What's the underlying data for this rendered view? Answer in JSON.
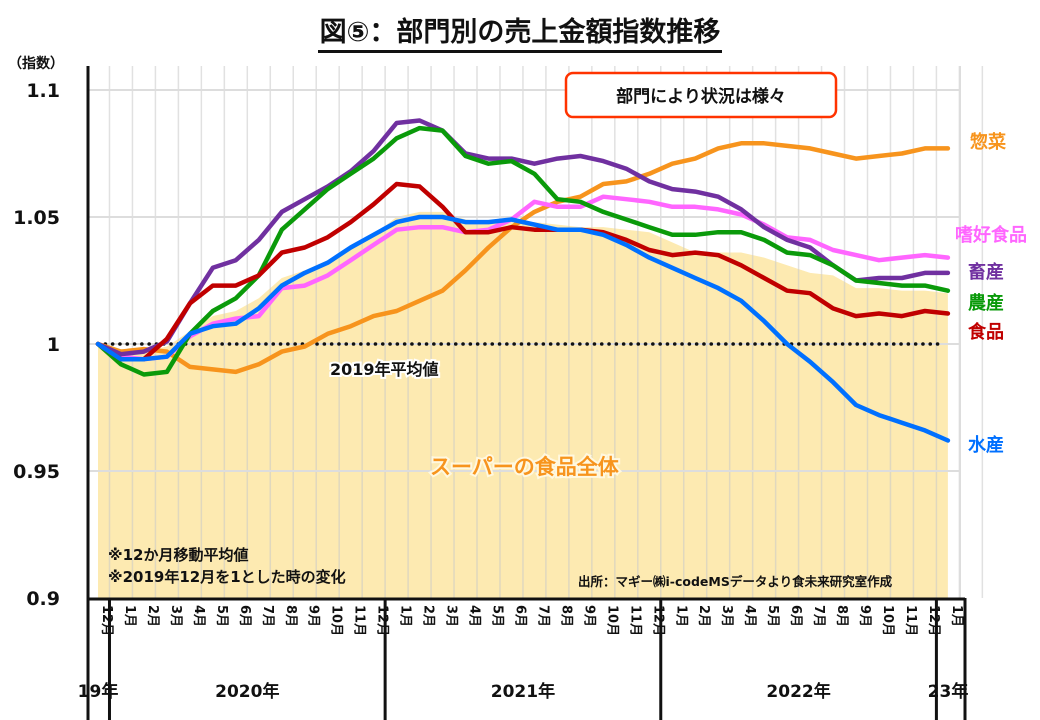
{
  "title": "図⑤：部門別の売上金額指数推移",
  "chart_data": {
    "type": "line",
    "title": "図⑤：部門別の売上金額指数推移",
    "ylabel": "（指数）",
    "xlabel": "",
    "ylim": [
      0.9,
      1.1
    ],
    "yticks": [
      {
        "value": 1.1,
        "label": "1.1"
      },
      {
        "value": 1.05,
        "label": "1.05"
      },
      {
        "value": 1.0,
        "label": "1"
      },
      {
        "value": 0.95,
        "label": "0.95"
      },
      {
        "value": 0.9,
        "label": "0.9"
      }
    ],
    "grid": true,
    "x_months": [
      "12月",
      "1月",
      "2月",
      "3月",
      "4月",
      "5月",
      "6月",
      "7月",
      "8月",
      "9月",
      "10月",
      "11月",
      "12月",
      "1月",
      "2月",
      "3月",
      "4月",
      "5月",
      "6月",
      "7月",
      "8月",
      "9月",
      "10月",
      "11月",
      "12月",
      "1月",
      "2月",
      "3月",
      "4月",
      "5月",
      "6月",
      "7月",
      "8月",
      "9月",
      "10月",
      "11月",
      "12月",
      "1月"
    ],
    "x_years": [
      {
        "label": "19年",
        "from": 0,
        "to": 0
      },
      {
        "label": "2020年",
        "from": 1,
        "to": 12
      },
      {
        "label": "2021年",
        "from": 13,
        "to": 24
      },
      {
        "label": "2022年",
        "from": 25,
        "to": 36
      },
      {
        "label": "23年",
        "from": 37,
        "to": 37
      }
    ],
    "area": {
      "name": "スーパーの食品全体",
      "color": "#fdeab1",
      "values": [
        1.0,
        0.998,
        0.997,
        0.999,
        1.005,
        1.011,
        1.013,
        1.018,
        1.026,
        1.029,
        1.033,
        1.038,
        1.043,
        1.05,
        1.052,
        1.052,
        1.049,
        1.048,
        1.048,
        1.048,
        1.047,
        1.046,
        1.046,
        1.045,
        1.044,
        1.04,
        1.036,
        1.036,
        1.036,
        1.034,
        1.031,
        1.028,
        1.027,
        1.022,
        1.022,
        1.021,
        1.021,
        1.02
      ]
    },
    "series": [
      {
        "name": "惣菜",
        "color": "#f7941d",
        "values": [
          1.0,
          0.997,
          0.998,
          0.997,
          0.991,
          0.99,
          0.989,
          0.992,
          0.997,
          0.999,
          1.004,
          1.007,
          1.011,
          1.013,
          1.017,
          1.021,
          1.029,
          1.038,
          1.046,
          1.052,
          1.056,
          1.058,
          1.063,
          1.064,
          1.067,
          1.071,
          1.073,
          1.077,
          1.079,
          1.079,
          1.078,
          1.077,
          1.075,
          1.073,
          1.074,
          1.075,
          1.077,
          1.077
        ]
      },
      {
        "name": "嗜好食品",
        "color": "#ff66ff",
        "values": [
          1.0,
          0.995,
          0.994,
          0.995,
          1.003,
          1.008,
          1.01,
          1.011,
          1.022,
          1.023,
          1.027,
          1.033,
          1.039,
          1.045,
          1.046,
          1.046,
          1.044,
          1.045,
          1.049,
          1.056,
          1.054,
          1.054,
          1.058,
          1.057,
          1.056,
          1.054,
          1.054,
          1.053,
          1.051,
          1.047,
          1.042,
          1.041,
          1.037,
          1.035,
          1.033,
          1.034,
          1.035,
          1.034
        ]
      },
      {
        "name": "畜産",
        "color": "#7030a0",
        "values": [
          1.0,
          0.996,
          0.997,
          1.001,
          1.016,
          1.03,
          1.033,
          1.041,
          1.052,
          1.057,
          1.062,
          1.068,
          1.076,
          1.087,
          1.088,
          1.084,
          1.075,
          1.073,
          1.073,
          1.071,
          1.073,
          1.074,
          1.072,
          1.069,
          1.064,
          1.061,
          1.06,
          1.058,
          1.053,
          1.046,
          1.041,
          1.038,
          1.031,
          1.025,
          1.026,
          1.026,
          1.028,
          1.028
        ]
      },
      {
        "name": "農産",
        "color": "#0a9a0a",
        "values": [
          1.0,
          0.992,
          0.988,
          0.989,
          1.004,
          1.013,
          1.018,
          1.027,
          1.045,
          1.053,
          1.061,
          1.067,
          1.073,
          1.081,
          1.085,
          1.084,
          1.074,
          1.071,
          1.072,
          1.067,
          1.057,
          1.056,
          1.052,
          1.049,
          1.046,
          1.043,
          1.043,
          1.044,
          1.044,
          1.041,
          1.036,
          1.035,
          1.031,
          1.025,
          1.024,
          1.023,
          1.023,
          1.021
        ]
      },
      {
        "name": "食品",
        "color": "#c00000",
        "values": [
          1.0,
          0.994,
          0.994,
          1.002,
          1.016,
          1.023,
          1.023,
          1.027,
          1.036,
          1.038,
          1.042,
          1.048,
          1.055,
          1.063,
          1.062,
          1.054,
          1.044,
          1.044,
          1.046,
          1.045,
          1.045,
          1.045,
          1.044,
          1.041,
          1.037,
          1.035,
          1.036,
          1.035,
          1.031,
          1.026,
          1.021,
          1.02,
          1.014,
          1.011,
          1.012,
          1.011,
          1.013,
          1.012
        ]
      },
      {
        "name": "水産",
        "color": "#0070ff",
        "values": [
          1.0,
          0.994,
          0.994,
          0.995,
          1.004,
          1.007,
          1.008,
          1.014,
          1.023,
          1.028,
          1.032,
          1.038,
          1.043,
          1.048,
          1.05,
          1.05,
          1.048,
          1.048,
          1.049,
          1.047,
          1.045,
          1.045,
          1.043,
          1.039,
          1.034,
          1.03,
          1.026,
          1.022,
          1.017,
          1.009,
          1.0,
          0.993,
          0.985,
          0.976,
          0.972,
          0.969,
          0.966,
          0.962
        ]
      }
    ],
    "reference_line": {
      "value": 1.0,
      "label": "2019年平均値",
      "style": "dotted"
    },
    "annotations": {
      "callout": "部門により状況は様々",
      "area_label": "スーパーの食品全体",
      "notes": [
        "※12か月移動平均値",
        "※2019年12月を1とした時の変化"
      ],
      "source": "出所：マギー㈱i-codeMSデータより食未来研究室作成"
    },
    "legend": "right (labels at line ends)"
  }
}
